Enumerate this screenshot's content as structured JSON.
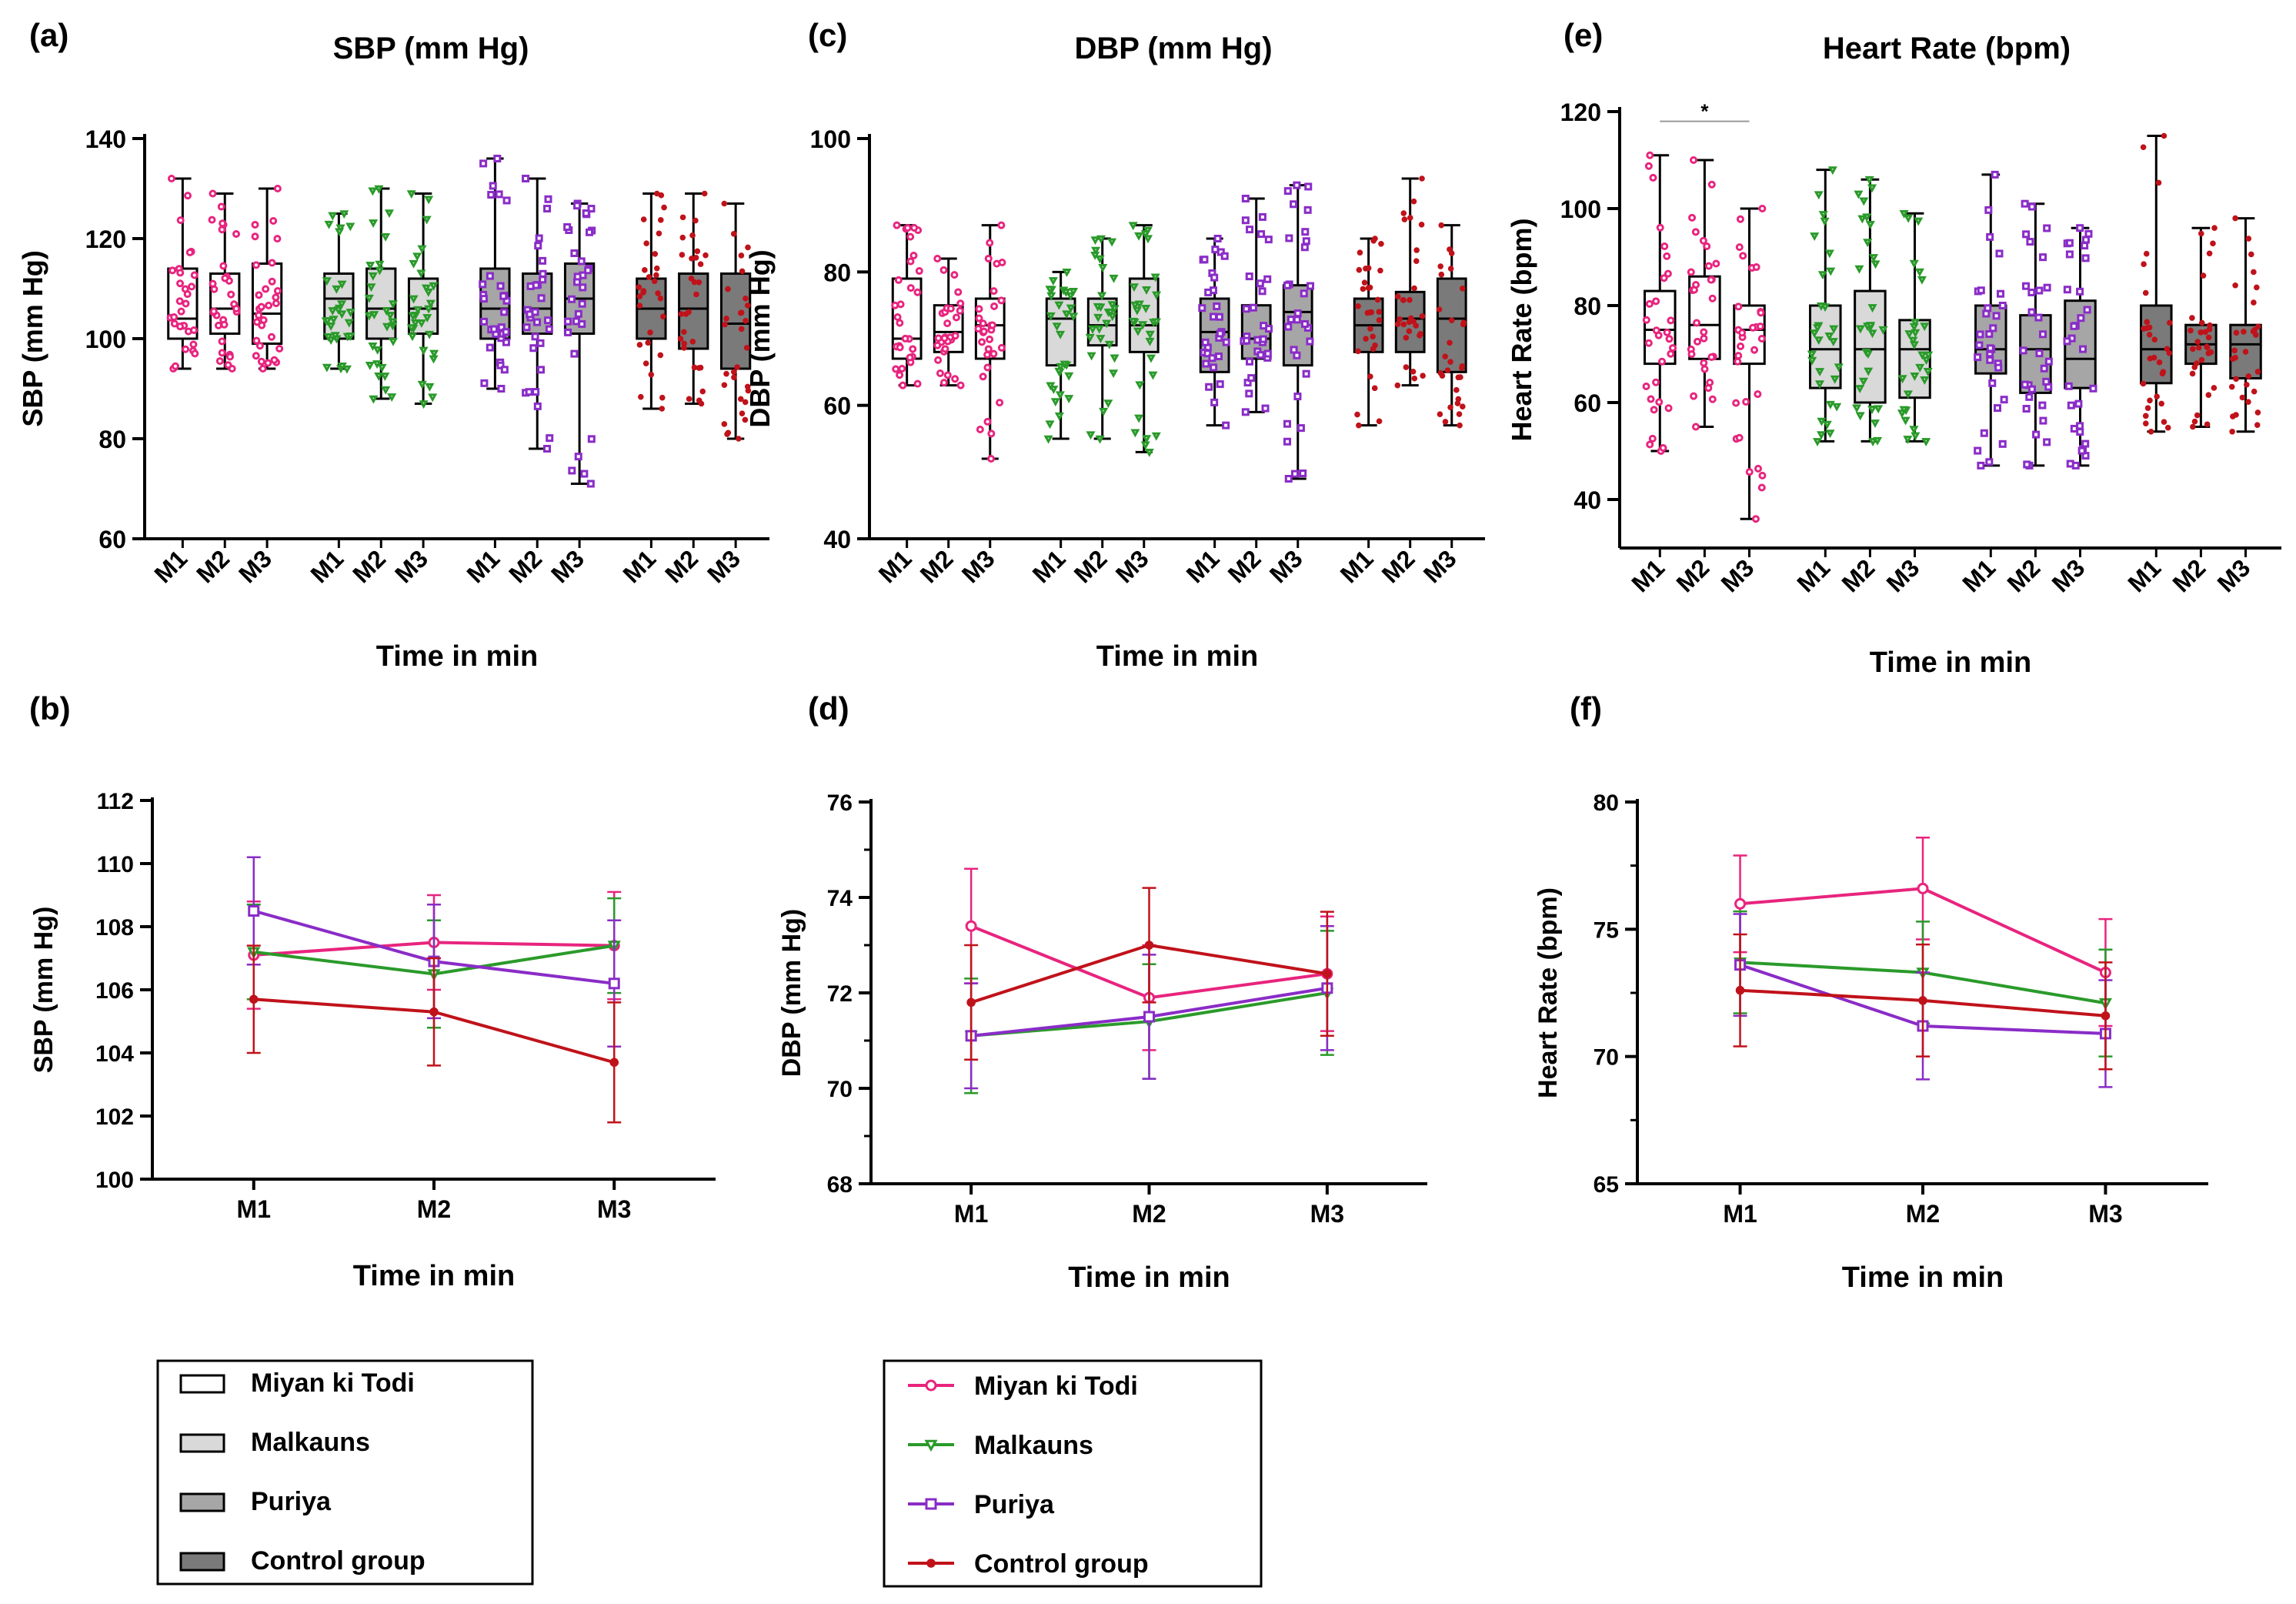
{
  "colors": {
    "miyan": "#e8247e",
    "malkauns": "#2a9a2a",
    "puriya": "#8a2cc7",
    "control": "#c0121a",
    "fill_miyan": "#ffffff",
    "fill_malkauns": "#d9d9d9",
    "fill_puriya": "#a6a6a6",
    "fill_control": "#7a7a7a"
  },
  "legend_box": {
    "items": [
      {
        "label": "Miyan ki Todi",
        "fill": "#ffffff"
      },
      {
        "label": "Malkauns",
        "fill": "#d9d9d9"
      },
      {
        "label": "Puriya",
        "fill": "#a6a6a6"
      },
      {
        "label": "Control group",
        "fill": "#7a7a7a"
      }
    ]
  },
  "legend_line": {
    "items": [
      {
        "label": "Miyan ki Todi",
        "color": "#e8247e",
        "marker": "circle"
      },
      {
        "label": "Malkauns",
        "color": "#2a9a2a",
        "marker": "triangle"
      },
      {
        "label": "Puriya",
        "color": "#8a2cc7",
        "marker": "square"
      },
      {
        "label": "Control group",
        "color": "#c0121a",
        "marker": "dot"
      }
    ]
  },
  "chart_data": [
    {
      "panel": "(a)",
      "type": "box",
      "title": "SBP (mm Hg)",
      "ylabel": "SBP (mm Hg)",
      "xlabel": "Time in min",
      "ylim": [
        60,
        140
      ],
      "yticks": [
        60,
        80,
        100,
        120,
        140
      ],
      "categories": [
        "M1",
        "M2",
        "M3"
      ],
      "groups": [
        {
          "name": "Miyan ki Todi",
          "boxes": [
            {
              "min": 94,
              "q1": 100,
              "median": 104,
              "q3": 114,
              "max": 132
            },
            {
              "min": 94,
              "q1": 101,
              "median": 106,
              "q3": 113,
              "max": 129
            },
            {
              "min": 94,
              "q1": 99,
              "median": 105,
              "q3": 115,
              "max": 130
            }
          ]
        },
        {
          "name": "Malkauns",
          "boxes": [
            {
              "min": 94,
              "q1": 100,
              "median": 108,
              "q3": 113,
              "max": 125
            },
            {
              "min": 88,
              "q1": 100,
              "median": 106,
              "q3": 114,
              "max": 130
            },
            {
              "min": 87,
              "q1": 101,
              "median": 106,
              "q3": 112,
              "max": 129
            }
          ]
        },
        {
          "name": "Puriya",
          "boxes": [
            {
              "min": 90,
              "q1": 100,
              "median": 106,
              "q3": 114,
              "max": 136
            },
            {
              "min": 78,
              "q1": 101,
              "median": 106,
              "q3": 113,
              "max": 132
            },
            {
              "min": 71,
              "q1": 101,
              "median": 108,
              "q3": 115,
              "max": 127
            }
          ]
        },
        {
          "name": "Control group",
          "boxes": [
            {
              "min": 86,
              "q1": 100,
              "median": 106,
              "q3": 112,
              "max": 129
            },
            {
              "min": 87,
              "q1": 98,
              "median": 106,
              "q3": 113,
              "max": 129
            },
            {
              "min": 80,
              "q1": 94,
              "median": 103,
              "q3": 113,
              "max": 127
            }
          ]
        }
      ]
    },
    {
      "panel": "(c)",
      "type": "box",
      "title": "DBP (mm Hg)",
      "ylabel": "DBP (mm Hg)",
      "xlabel": "Time in min",
      "ylim": [
        40,
        100
      ],
      "yticks": [
        40,
        60,
        80,
        100
      ],
      "categories": [
        "M1",
        "M2",
        "M3"
      ],
      "groups": [
        {
          "name": "Miyan ki Todi",
          "boxes": [
            {
              "min": 63,
              "q1": 67,
              "median": 70,
              "q3": 79,
              "max": 87
            },
            {
              "min": 63,
              "q1": 68,
              "median": 71,
              "q3": 75,
              "max": 82
            },
            {
              "min": 52,
              "q1": 67,
              "median": 72,
              "q3": 76,
              "max": 87
            }
          ]
        },
        {
          "name": "Malkauns",
          "boxes": [
            {
              "min": 55,
              "q1": 66,
              "median": 73,
              "q3": 76,
              "max": 80
            },
            {
              "min": 55,
              "q1": 69,
              "median": 72,
              "q3": 76,
              "max": 85
            },
            {
              "min": 53,
              "q1": 68,
              "median": 72,
              "q3": 79,
              "max": 87
            }
          ]
        },
        {
          "name": "Puriya",
          "boxes": [
            {
              "min": 57,
              "q1": 65,
              "median": 71,
              "q3": 76,
              "max": 85
            },
            {
              "min": 59,
              "q1": 67,
              "median": 70,
              "q3": 75,
              "max": 91
            },
            {
              "min": 49,
              "q1": 66,
              "median": 74,
              "q3": 78,
              "max": 93
            }
          ]
        },
        {
          "name": "Control group",
          "boxes": [
            {
              "min": 57,
              "q1": 68,
              "median": 72,
              "q3": 76,
              "max": 85
            },
            {
              "min": 63,
              "q1": 68,
              "median": 73,
              "q3": 77,
              "max": 94
            },
            {
              "min": 57,
              "q1": 65,
              "median": 73,
              "q3": 79,
              "max": 87
            }
          ]
        }
      ]
    },
    {
      "panel": "(e)",
      "type": "box",
      "title": "Heart Rate (bpm)",
      "ylabel": "Heart Rate (bpm)",
      "xlabel": "Time in min",
      "ylim": [
        30,
        120
      ],
      "yticks": [
        40,
        60,
        80,
        100,
        120
      ],
      "categories": [
        "M1",
        "M2",
        "M3"
      ],
      "significance": "*",
      "groups": [
        {
          "name": "Miyan ki Todi",
          "boxes": [
            {
              "min": 50,
              "q1": 68,
              "median": 75,
              "q3": 83,
              "max": 111
            },
            {
              "min": 55,
              "q1": 69,
              "median": 76,
              "q3": 86,
              "max": 110
            },
            {
              "min": 36,
              "q1": 68,
              "median": 75,
              "q3": 80,
              "max": 100
            }
          ]
        },
        {
          "name": "Malkauns",
          "boxes": [
            {
              "min": 52,
              "q1": 63,
              "median": 71,
              "q3": 80,
              "max": 108
            },
            {
              "min": 52,
              "q1": 60,
              "median": 71,
              "q3": 83,
              "max": 106
            },
            {
              "min": 52,
              "q1": 61,
              "median": 71,
              "q3": 77,
              "max": 99
            }
          ]
        },
        {
          "name": "Puriya",
          "boxes": [
            {
              "min": 47,
              "q1": 66,
              "median": 71,
              "q3": 80,
              "max": 107
            },
            {
              "min": 47,
              "q1": 62,
              "median": 71,
              "q3": 78,
              "max": 101
            },
            {
              "min": 47,
              "q1": 63,
              "median": 69,
              "q3": 81,
              "max": 96
            }
          ]
        },
        {
          "name": "Control group",
          "boxes": [
            {
              "min": 54,
              "q1": 64,
              "median": 71,
              "q3": 80,
              "max": 115
            },
            {
              "min": 55,
              "q1": 68,
              "median": 72,
              "q3": 76,
              "max": 96
            },
            {
              "min": 54,
              "q1": 65,
              "median": 72,
              "q3": 76,
              "max": 98
            }
          ]
        }
      ]
    },
    {
      "panel": "(b)",
      "type": "line",
      "ylabel": "SBP (mm Hg)",
      "xlabel": "Time in min",
      "ylim": [
        100,
        112
      ],
      "yticks": [
        100,
        102,
        104,
        106,
        108,
        110,
        112
      ],
      "categories": [
        "M1",
        "M2",
        "M3"
      ],
      "series": [
        {
          "name": "Miyan ki Todi",
          "values": [
            107.1,
            107.5,
            107.4
          ],
          "err": [
            1.7,
            1.5,
            1.7
          ]
        },
        {
          "name": "Malkauns",
          "values": [
            107.2,
            106.5,
            107.4
          ],
          "err": [
            1.5,
            1.7,
            1.5
          ]
        },
        {
          "name": "Puriya",
          "values": [
            108.5,
            106.9,
            106.2
          ],
          "err": [
            1.7,
            1.8,
            2.0
          ]
        },
        {
          "name": "Control group",
          "values": [
            105.7,
            105.3,
            103.7
          ],
          "err": [
            1.7,
            1.7,
            1.9
          ]
        }
      ]
    },
    {
      "panel": "(d)",
      "type": "line",
      "ylabel": "DBP (mm Hg)",
      "xlabel": "Time in min",
      "ylim": [
        68,
        76
      ],
      "yticks": [
        68,
        70,
        72,
        74,
        76
      ],
      "categories": [
        "M1",
        "M2",
        "M3"
      ],
      "series": [
        {
          "name": "Miyan ki Todi",
          "values": [
            73.4,
            71.9,
            72.4
          ],
          "err": [
            1.2,
            1.1,
            1.2
          ]
        },
        {
          "name": "Malkauns",
          "values": [
            71.1,
            71.4,
            72.0
          ],
          "err": [
            1.2,
            1.2,
            1.3
          ]
        },
        {
          "name": "Puriya",
          "values": [
            71.1,
            71.5,
            72.1
          ],
          "err": [
            1.1,
            1.3,
            1.3
          ]
        },
        {
          "name": "Control group",
          "values": [
            71.8,
            73.0,
            72.4
          ],
          "err": [
            1.2,
            1.2,
            1.3
          ]
        }
      ]
    },
    {
      "panel": "(f)",
      "type": "line",
      "ylabel": "Heart Rate (bpm)",
      "xlabel": "Time in min",
      "ylim": [
        65,
        80
      ],
      "yticks": [
        65,
        70,
        75,
        80
      ],
      "categories": [
        "M1",
        "M2",
        "M3"
      ],
      "series": [
        {
          "name": "Miyan ki Todi",
          "values": [
            76.0,
            76.6,
            73.3
          ],
          "err": [
            1.9,
            2.0,
            2.1
          ]
        },
        {
          "name": "Malkauns",
          "values": [
            73.7,
            73.3,
            72.1
          ],
          "err": [
            2.0,
            2.0,
            2.1
          ]
        },
        {
          "name": "Puriya",
          "values": [
            73.6,
            71.2,
            70.9
          ],
          "err": [
            2.0,
            2.1,
            2.1
          ]
        },
        {
          "name": "Control group",
          "values": [
            72.6,
            72.2,
            71.6
          ],
          "err": [
            2.2,
            2.2,
            2.1
          ]
        }
      ]
    }
  ]
}
